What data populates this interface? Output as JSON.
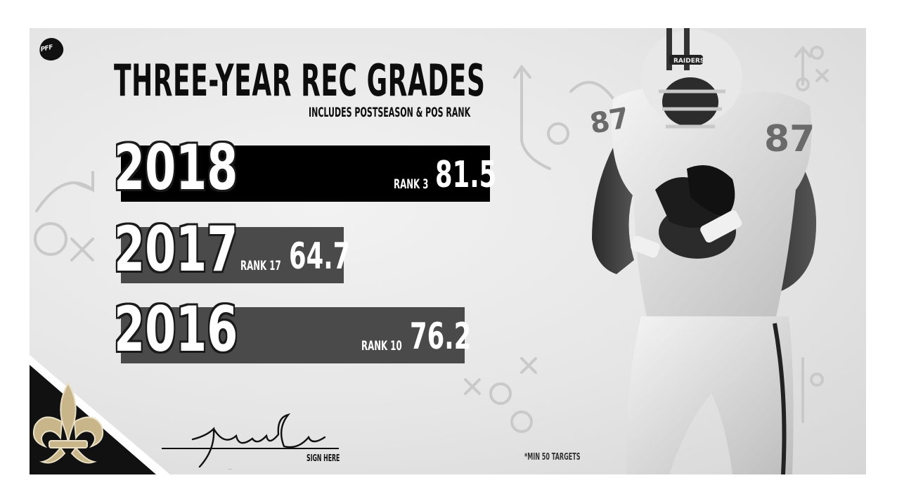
{
  "brand": "PFF",
  "title": "THREE-YEAR REC GRADES",
  "subtitle": "INCLUDES POSTSEASON & POS RANK",
  "signature": "Jared Cook",
  "sign_here": "SIGN HERE",
  "footnote": "*MIN 50 TARGETS",
  "team_logo_icon": "fleur-de-lis-icon",
  "colors": {
    "accent_gold": "#c8b589",
    "bar_top": "#000000",
    "bar_other": "#4a4a4a",
    "background": "#e6e6e6"
  },
  "chart_data": {
    "type": "bar",
    "orientation": "horizontal",
    "title": "THREE-YEAR REC GRADES",
    "subtitle": "INCLUDES POSTSEASON & POS RANK",
    "categories": [
      "2018",
      "2017",
      "2016"
    ],
    "values": [
      81.5,
      64.7,
      76.2
    ],
    "value_labels": [
      "81.5",
      "64.7",
      "76.2"
    ],
    "ranks": [
      "RANK 3",
      "RANK 17",
      "RANK 10"
    ],
    "grid": false
  }
}
